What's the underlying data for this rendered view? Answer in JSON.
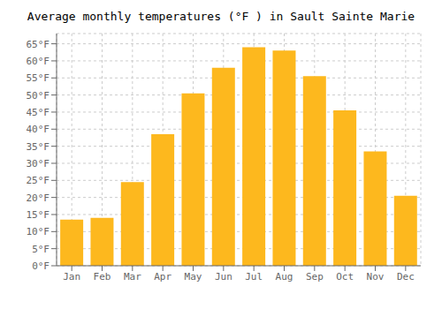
{
  "chart_data": {
    "type": "bar",
    "title": "Average monthly temperatures (°F ) in Sault Sainte Marie",
    "categories": [
      "Jan",
      "Feb",
      "Mar",
      "Apr",
      "May",
      "Jun",
      "Jul",
      "Aug",
      "Sep",
      "Oct",
      "Nov",
      "Dec"
    ],
    "values": [
      13.5,
      14.0,
      24.5,
      38.5,
      50.5,
      58.0,
      64.0,
      63.0,
      55.5,
      45.5,
      33.5,
      20.5
    ],
    "color": "#FDB81E",
    "ylim": [
      0,
      68
    ],
    "yticks": [
      {
        "value": 0,
        "label": "0°F"
      },
      {
        "value": 5,
        "label": "5°F"
      },
      {
        "value": 10,
        "label": "10°F"
      },
      {
        "value": 15,
        "label": "15°F"
      },
      {
        "value": 20,
        "label": "20°F"
      },
      {
        "value": 25,
        "label": "25°F"
      },
      {
        "value": 30,
        "label": "30°F"
      },
      {
        "value": 35,
        "label": "35°F"
      },
      {
        "value": 40,
        "label": "40°F"
      },
      {
        "value": 45,
        "label": "45°F"
      },
      {
        "value": 50,
        "label": "50°F"
      },
      {
        "value": 55,
        "label": "55°F"
      },
      {
        "value": 60,
        "label": "60°F"
      },
      {
        "value": 65,
        "label": "65°F"
      }
    ],
    "grid": true
  }
}
